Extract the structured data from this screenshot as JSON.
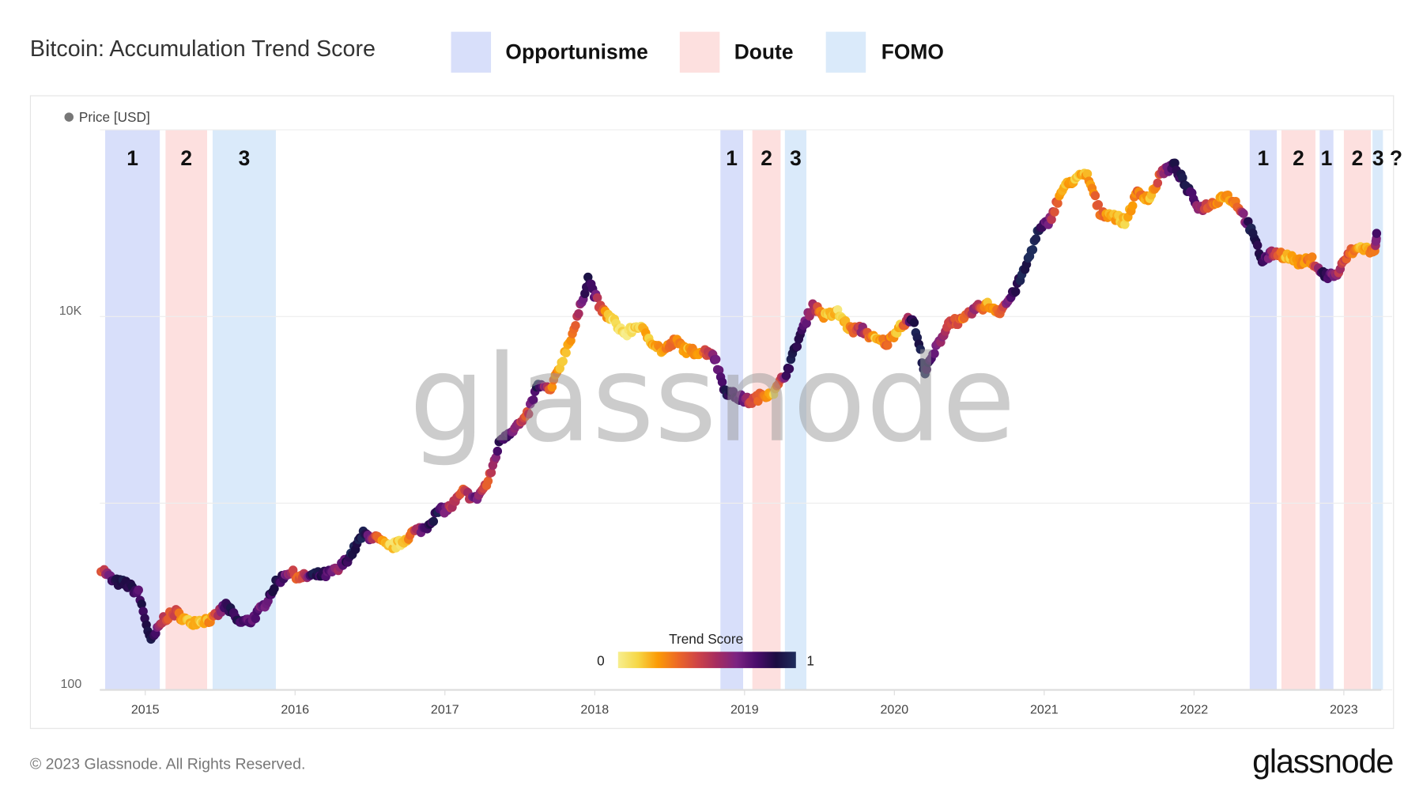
{
  "header": {
    "title": "Bitcoin: Accumulation Trend Score",
    "legend": [
      {
        "label": "Opportunisme",
        "color": "#d8dffa"
      },
      {
        "label": "Doute",
        "color": "#fde0df"
      },
      {
        "label": "FOMO",
        "color": "#daeafa"
      }
    ]
  },
  "chart_data": {
    "type": "scatter",
    "series_legend": "Price [USD]",
    "y_scale": "log",
    "ylim": [
      100,
      100000
    ],
    "y_tick_labels": [
      {
        "value": 10000,
        "label": "10K"
      },
      {
        "value": 100,
        "label": "100"
      }
    ],
    "xlim": [
      "2014-09-12",
      "2023-04-01"
    ],
    "x_tick_labels": [
      "2015",
      "2016",
      "2017",
      "2018",
      "2019",
      "2020",
      "2021",
      "2022",
      "2023"
    ],
    "grid": true,
    "color_scale": {
      "title": "Trend Score",
      "min_label": "0",
      "max_label": "1",
      "colors": [
        "#f7ee8f",
        "#f6d746",
        "#fb9b06",
        "#ed6925",
        "#cf4446",
        "#a52c60",
        "#7b2382",
        "#4a0c6b",
        "#1b0c41",
        "#1f2d5c"
      ]
    },
    "bands": [
      {
        "phase": "Opportunisme",
        "label": "1",
        "start": "2014-09-25",
        "end": "2015-02-06"
      },
      {
        "phase": "Doute",
        "label": "2",
        "start": "2015-02-20",
        "end": "2015-05-30"
      },
      {
        "phase": "FOMO",
        "label": "3",
        "start": "2015-06-13",
        "end": "2015-11-15"
      },
      {
        "phase": "Opportunisme",
        "label": "1",
        "start": "2018-11-03",
        "end": "2018-12-28"
      },
      {
        "phase": "Doute",
        "label": "2",
        "start": "2019-01-20",
        "end": "2019-03-28"
      },
      {
        "phase": "FOMO",
        "label": "3",
        "start": "2019-04-08",
        "end": "2019-05-30"
      },
      {
        "phase": "Opportunisme",
        "label": "1",
        "start": "2022-05-15",
        "end": "2022-07-20"
      },
      {
        "phase": "Doute",
        "label": "2",
        "start": "2022-08-01",
        "end": "2022-10-23"
      },
      {
        "phase": "Opportunisme",
        "label": "1",
        "start": "2022-11-03",
        "end": "2022-12-06"
      },
      {
        "phase": "Doute",
        "label": "2",
        "start": "2023-01-01",
        "end": "2023-03-06"
      },
      {
        "phase": "FOMO",
        "label": "3 ?",
        "start": "2023-03-10",
        "end": "2023-04-05"
      }
    ],
    "points": [
      [
        "2014-09",
        450,
        0.35
      ],
      [
        "2014-10",
        380,
        0.85
      ],
      [
        "2014-11",
        370,
        0.9
      ],
      [
        "2014-12",
        330,
        0.8
      ],
      [
        "2015-01",
        180,
        0.95
      ],
      [
        "2015-02",
        240,
        0.45
      ],
      [
        "2015-03",
        260,
        0.4
      ],
      [
        "2015-04",
        230,
        0.15
      ],
      [
        "2015-05",
        235,
        0.12
      ],
      [
        "2015-06",
        240,
        0.3
      ],
      [
        "2015-07",
        285,
        0.85
      ],
      [
        "2015-08",
        230,
        0.85
      ],
      [
        "2015-09",
        235,
        0.75
      ],
      [
        "2015-10",
        280,
        0.7
      ],
      [
        "2015-11",
        370,
        0.92
      ],
      [
        "2015-12",
        430,
        0.65
      ],
      [
        "2016-01",
        400,
        0.3
      ],
      [
        "2016-02",
        410,
        0.9
      ],
      [
        "2016-03",
        415,
        0.8
      ],
      [
        "2016-04",
        440,
        0.6
      ],
      [
        "2016-05",
        530,
        0.95
      ],
      [
        "2016-06",
        680,
        0.95
      ],
      [
        "2016-07",
        650,
        0.45
      ],
      [
        "2016-08",
        580,
        0.1
      ],
      [
        "2016-09",
        610,
        0.12
      ],
      [
        "2016-10",
        700,
        0.35
      ],
      [
        "2016-11",
        740,
        0.85
      ],
      [
        "2016-12",
        900,
        0.9
      ],
      [
        "2017-01",
        950,
        0.5
      ],
      [
        "2017-02",
        1150,
        0.4
      ],
      [
        "2017-03",
        1050,
        0.7
      ],
      [
        "2017-04",
        1300,
        0.35
      ],
      [
        "2017-05",
        2200,
        0.9
      ],
      [
        "2017-06",
        2500,
        0.7
      ],
      [
        "2017-07",
        2800,
        0.4
      ],
      [
        "2017-08",
        4300,
        0.95
      ],
      [
        "2017-09",
        4000,
        0.35
      ],
      [
        "2017-10",
        6000,
        0.12
      ],
      [
        "2017-11",
        9000,
        0.35
      ],
      [
        "2017-12",
        16000,
        0.95
      ],
      [
        "2018-01",
        11000,
        0.45
      ],
      [
        "2018-02",
        9500,
        0.05
      ],
      [
        "2018-03",
        8000,
        0.05
      ],
      [
        "2018-04",
        9000,
        0.12
      ],
      [
        "2018-05",
        7500,
        0.2
      ],
      [
        "2018-06",
        6500,
        0.22
      ],
      [
        "2018-07",
        7400,
        0.3
      ],
      [
        "2018-08",
        6500,
        0.2
      ],
      [
        "2018-09",
        6500,
        0.25
      ],
      [
        "2018-10",
        6400,
        0.6
      ],
      [
        "2018-11",
        4000,
        0.9
      ],
      [
        "2018-12",
        3700,
        0.85
      ],
      [
        "2019-01",
        3500,
        0.45
      ],
      [
        "2019-02",
        3800,
        0.3
      ],
      [
        "2019-03",
        4000,
        0.15
      ],
      [
        "2019-04",
        5200,
        0.9
      ],
      [
        "2019-05",
        8000,
        0.85
      ],
      [
        "2019-06",
        11500,
        0.55
      ],
      [
        "2019-07",
        10000,
        0.2
      ],
      [
        "2019-08",
        10500,
        0.1
      ],
      [
        "2019-09",
        8500,
        0.25
      ],
      [
        "2019-10",
        8500,
        0.6
      ],
      [
        "2019-11",
        7500,
        0.12
      ],
      [
        "2019-12",
        7200,
        0.35
      ],
      [
        "2020-01",
        9000,
        0.1
      ],
      [
        "2020-02",
        9800,
        0.9
      ],
      [
        "2020-03",
        5000,
        0.95
      ],
      [
        "2020-04",
        7000,
        0.6
      ],
      [
        "2020-05",
        9500,
        0.5
      ],
      [
        "2020-06",
        9400,
        0.3
      ],
      [
        "2020-07",
        11000,
        0.6
      ],
      [
        "2020-08",
        11500,
        0.2
      ],
      [
        "2020-09",
        10700,
        0.3
      ],
      [
        "2020-10",
        13000,
        0.85
      ],
      [
        "2020-11",
        18000,
        0.95
      ],
      [
        "2020-12",
        28000,
        0.98
      ],
      [
        "2021-01",
        33000,
        0.6
      ],
      [
        "2021-02",
        48000,
        0.2
      ],
      [
        "2021-03",
        55000,
        0.15
      ],
      [
        "2021-04",
        57000,
        0.2
      ],
      [
        "2021-05",
        36000,
        0.35
      ],
      [
        "2021-06",
        35000,
        0.2
      ],
      [
        "2021-07",
        32000,
        0.1
      ],
      [
        "2021-08",
        46000,
        0.35
      ],
      [
        "2021-09",
        43000,
        0.15
      ],
      [
        "2021-10",
        60000,
        0.5
      ],
      [
        "2021-11",
        64000,
        0.85
      ],
      [
        "2021-12",
        48000,
        0.9
      ],
      [
        "2022-01",
        38000,
        0.6
      ],
      [
        "2022-02",
        40000,
        0.35
      ],
      [
        "2022-03",
        45000,
        0.2
      ],
      [
        "2022-04",
        40000,
        0.3
      ],
      [
        "2022-05",
        30000,
        0.9
      ],
      [
        "2022-06",
        20000,
        0.9
      ],
      [
        "2022-07",
        22000,
        0.5
      ],
      [
        "2022-08",
        21000,
        0.15
      ],
      [
        "2022-09",
        19500,
        0.2
      ],
      [
        "2022-10",
        20000,
        0.3
      ],
      [
        "2022-11",
        16500,
        0.9
      ],
      [
        "2022-12",
        16800,
        0.55
      ],
      [
        "2023-01",
        22000,
        0.35
      ],
      [
        "2023-02",
        23500,
        0.15
      ],
      [
        "2023-03",
        22000,
        0.3
      ],
      [
        "2023-03-20",
        28000,
        0.75
      ]
    ]
  },
  "watermark": "glassnode",
  "footer": {
    "copyright": "© 2023 Glassnode. All Rights Reserved.",
    "logo": "glassnode"
  }
}
